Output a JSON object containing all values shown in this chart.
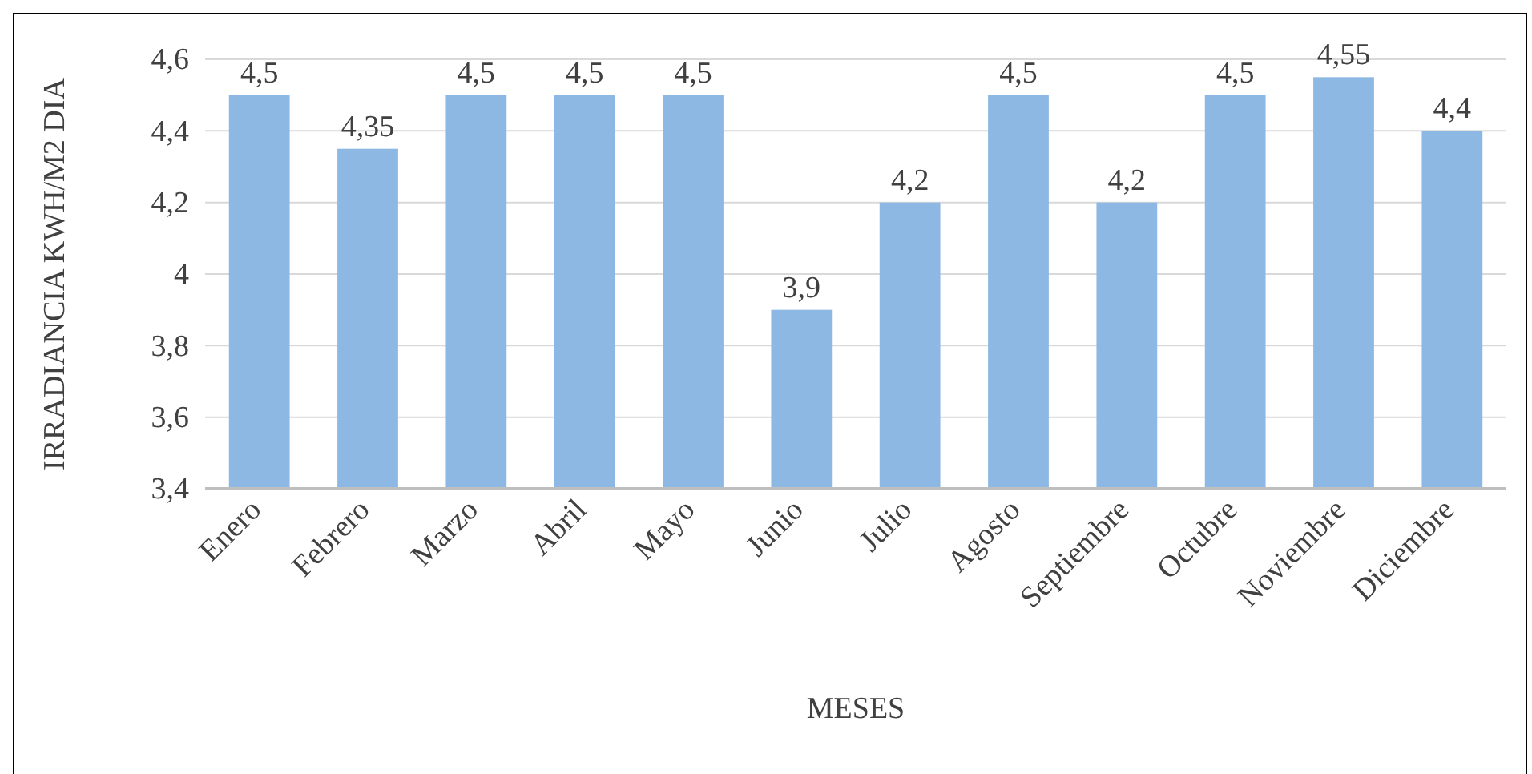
{
  "chart_data": {
    "type": "bar",
    "xlabel": "MESES",
    "ylabel": "IRRADIANCIA KWH/M2 DIA",
    "categories": [
      "Enero",
      "Febrero",
      "Marzo",
      "Abril",
      "Mayo",
      "Junio",
      "Julio",
      "Agosto",
      "Septiembre",
      "Octubre",
      "Noviembre",
      "Diciembre"
    ],
    "values": [
      4.5,
      4.35,
      4.5,
      4.5,
      4.5,
      3.9,
      4.2,
      4.5,
      4.2,
      4.5,
      4.55,
      4.4
    ],
    "value_labels": [
      "4,5",
      "4,35",
      "4,5",
      "4,5",
      "4,5",
      "3,9",
      "4,2",
      "4,5",
      "4,2",
      "4,5",
      "4,55",
      "4,4"
    ],
    "color": "#8db8e3",
    "ylim": [
      3.4,
      4.6
    ],
    "yticks": [
      {
        "value": 3.4,
        "label": "3,4"
      },
      {
        "value": 3.6,
        "label": "3,6"
      },
      {
        "value": 3.8,
        "label": "3,8"
      },
      {
        "value": 4,
        "label": "4"
      },
      {
        "value": 4.2,
        "label": "4,2"
      },
      {
        "value": 4.4,
        "label": "4,4"
      },
      {
        "value": 4.6,
        "label": "4,6"
      }
    ],
    "grid": "y"
  }
}
